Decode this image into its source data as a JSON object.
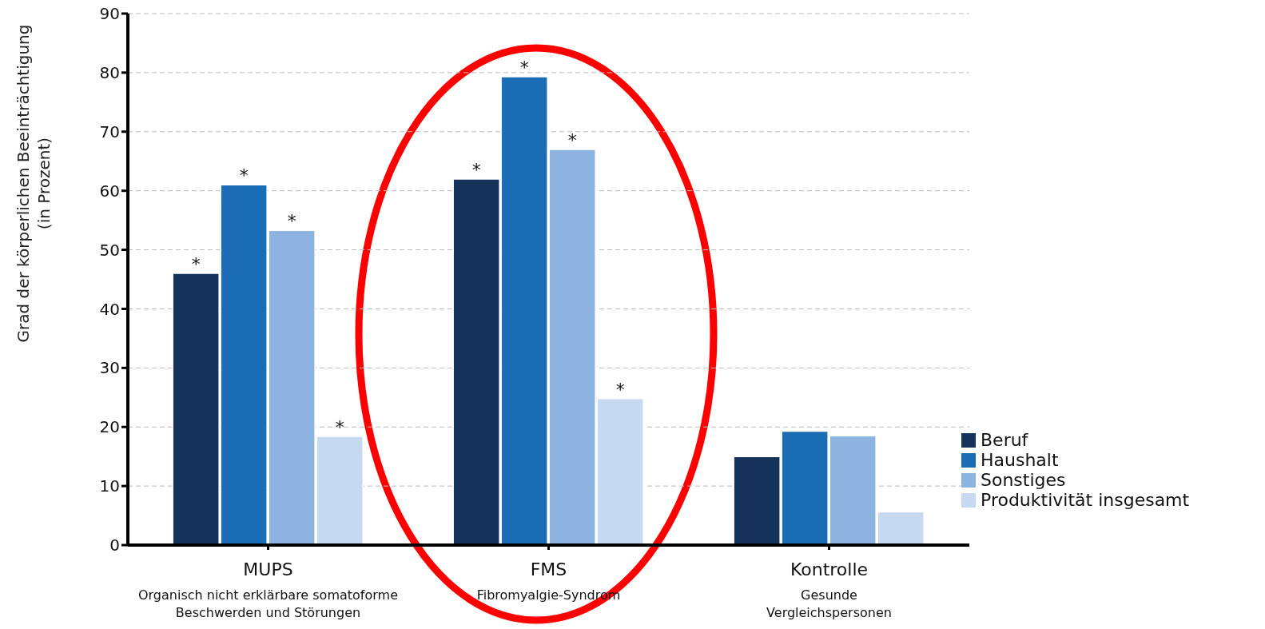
{
  "chart_data": {
    "type": "bar",
    "ylabel": "Grad der körperlichen Beeinträchtigung\n(in Prozent)",
    "categories": [
      "MUPS\nOrganisch nicht erklärbare somatoforme\nBeschwerden und Störungen",
      "FMS\nFibromyalgie-Syndrom",
      "Kontrolle\nGesunde\nVergleichspersonen"
    ],
    "series": [
      {
        "name": "Beruf",
        "color": "#14325a",
        "values": [
          46,
          62,
          15
        ],
        "value_labels": [
          "*",
          "*",
          null
        ]
      },
      {
        "name": "Haushalt",
        "color": "#1b6db5",
        "values": [
          61,
          79.3,
          19.3
        ],
        "value_labels": [
          "*",
          "*",
          null
        ]
      },
      {
        "name": "Sonstiges",
        "color": "#8db4e0",
        "values": [
          53.3,
          67,
          18.5
        ],
        "value_labels": [
          "*",
          "*",
          null
        ]
      },
      {
        "name": "Produktivität insgesamt",
        "color": "#c6d9f0",
        "values": [
          18.4,
          24.8,
          5.6
        ],
        "value_labels": [
          "*",
          "*",
          null
        ]
      }
    ],
    "ylim": [
      0,
      90
    ],
    "yticks": [
      0,
      10,
      20,
      30,
      40,
      50,
      60,
      70,
      80,
      90
    ],
    "grid": "y",
    "legend": "right"
  }
}
